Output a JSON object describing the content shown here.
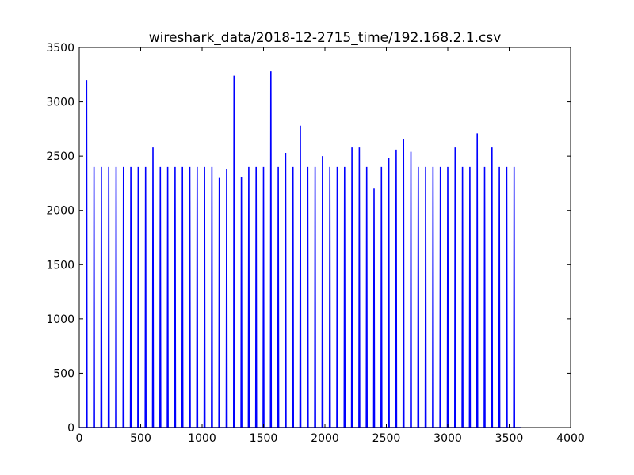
{
  "chart_data": {
    "type": "line",
    "title": "wireshark_data/2018-12-2715_time/192.168.2.1.csv",
    "xlabel": "",
    "ylabel": "",
    "xlim": [
      0,
      4000
    ],
    "ylim": [
      0,
      3500
    ],
    "x_ticks": [
      "0",
      "500",
      "1000",
      "1500",
      "2000",
      "2500",
      "3000",
      "3500",
      "4000"
    ],
    "y_ticks": [
      "0",
      "500",
      "1000",
      "1500",
      "2000",
      "2500",
      "3000",
      "3500"
    ],
    "x_tick_values": [
      0,
      500,
      1000,
      1500,
      2000,
      2500,
      3000,
      3500,
      4000
    ],
    "y_tick_values": [
      0,
      500,
      1000,
      1500,
      2000,
      2500,
      3000,
      3500
    ],
    "grid": false,
    "line_color": "#0000ff",
    "x_end": 3600,
    "series": [
      {
        "points": [
          [
            60,
            3200
          ],
          [
            120,
            2400
          ],
          [
            180,
            2400
          ],
          [
            240,
            2400
          ],
          [
            300,
            2400
          ],
          [
            360,
            2400
          ],
          [
            420,
            2400
          ],
          [
            480,
            2400
          ],
          [
            540,
            2400
          ],
          [
            600,
            2580
          ],
          [
            660,
            2400
          ],
          [
            720,
            2400
          ],
          [
            780,
            2400
          ],
          [
            840,
            2400
          ],
          [
            900,
            2400
          ],
          [
            960,
            2400
          ],
          [
            1020,
            2400
          ],
          [
            1080,
            2400
          ],
          [
            1140,
            2300
          ],
          [
            1200,
            2380
          ],
          [
            1260,
            3240
          ],
          [
            1320,
            2310
          ],
          [
            1380,
            2400
          ],
          [
            1440,
            2400
          ],
          [
            1500,
            2400
          ],
          [
            1560,
            3280
          ],
          [
            1620,
            2400
          ],
          [
            1680,
            2530
          ],
          [
            1740,
            2400
          ],
          [
            1800,
            2780
          ],
          [
            1860,
            2400
          ],
          [
            1920,
            2400
          ],
          [
            1980,
            2500
          ],
          [
            2040,
            2400
          ],
          [
            2100,
            2400
          ],
          [
            2160,
            2400
          ],
          [
            2220,
            2580
          ],
          [
            2280,
            2580
          ],
          [
            2340,
            2400
          ],
          [
            2400,
            2200
          ],
          [
            2460,
            2400
          ],
          [
            2520,
            2480
          ],
          [
            2580,
            2560
          ],
          [
            2640,
            2660
          ],
          [
            2700,
            2540
          ],
          [
            2760,
            2400
          ],
          [
            2820,
            2400
          ],
          [
            2880,
            2400
          ],
          [
            2940,
            2400
          ],
          [
            3000,
            2400
          ],
          [
            3060,
            2580
          ],
          [
            3120,
            2400
          ],
          [
            3180,
            2400
          ],
          [
            3240,
            2710
          ],
          [
            3300,
            2400
          ],
          [
            3360,
            2580
          ],
          [
            3420,
            2400
          ],
          [
            3480,
            2400
          ],
          [
            3540,
            2400
          ]
        ]
      }
    ]
  }
}
